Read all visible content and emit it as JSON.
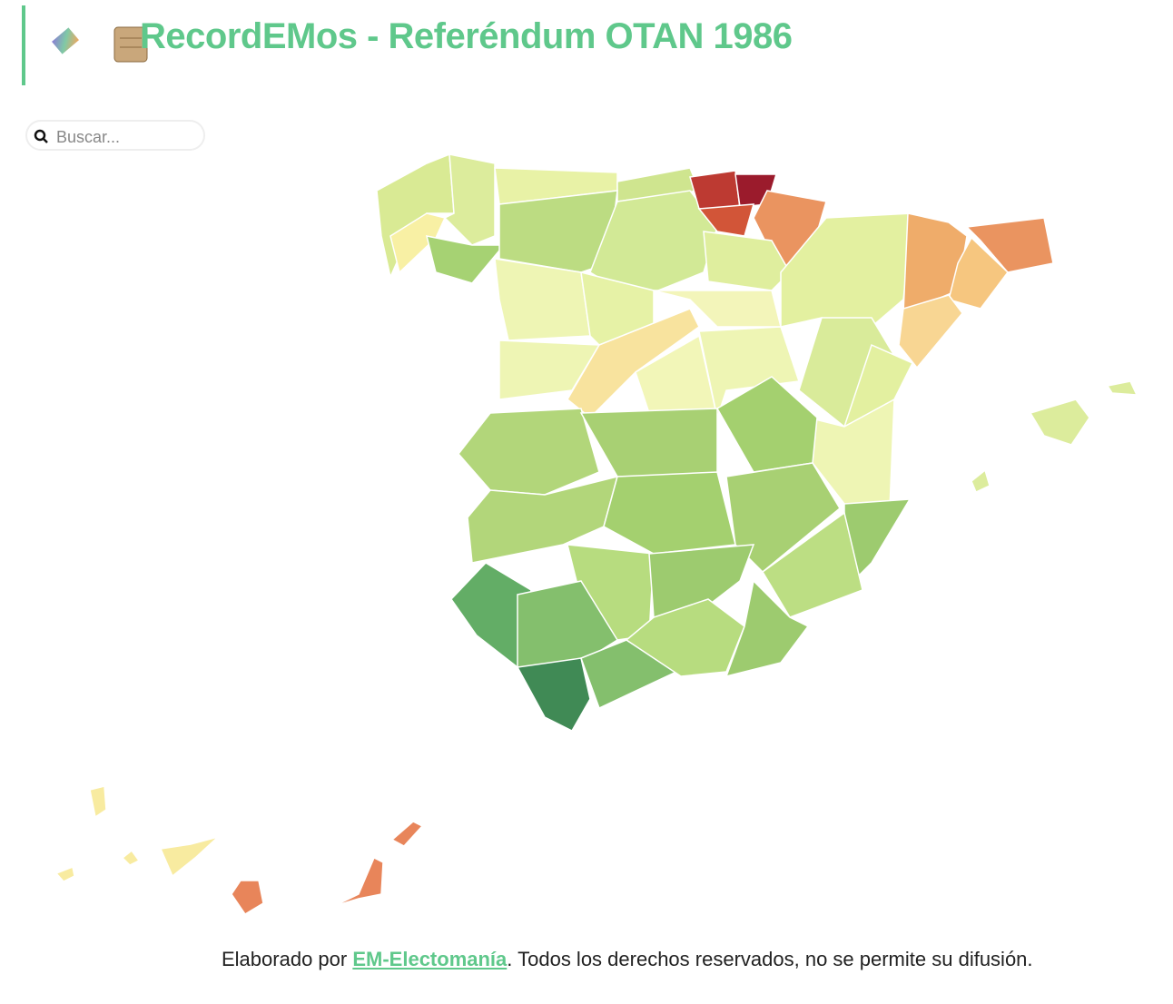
{
  "header": {
    "title": "RecordEMos - Referéndum OTAN 1986"
  },
  "search": {
    "placeholder": "Buscar..."
  },
  "footer": {
    "prefix": "Elaborado por",
    "link": "EM-Electomanía",
    "suffix": ". Todos los derechos reservados, no se permite su difusión."
  }
}
